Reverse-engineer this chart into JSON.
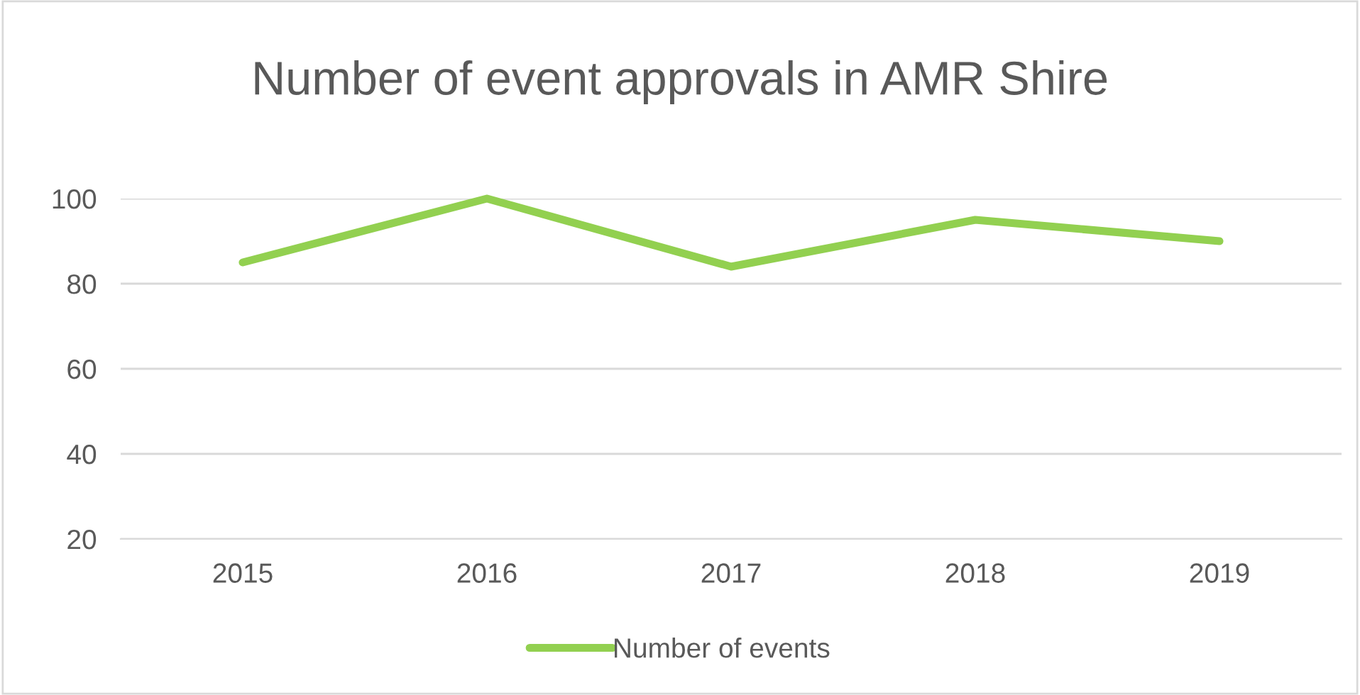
{
  "chart_data": {
    "type": "line",
    "title": "Number of event approvals in AMR Shire",
    "categories": [
      "2015",
      "2016",
      "2017",
      "2018",
      "2019"
    ],
    "series": [
      {
        "name": "Number of events",
        "color": "#92d050",
        "values": [
          85,
          100,
          84,
          95,
          90
        ]
      }
    ],
    "ylim": [
      20,
      100
    ],
    "yticks": [
      20,
      40,
      60,
      80,
      100
    ],
    "grid": "y",
    "legend": "bottom",
    "marker": "none",
    "line_style": "solid"
  }
}
